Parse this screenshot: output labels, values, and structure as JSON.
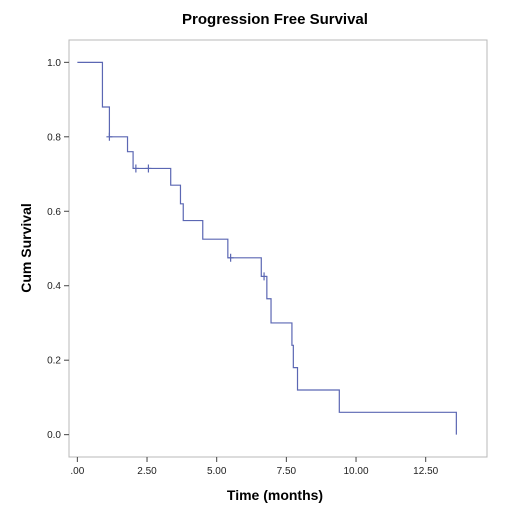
{
  "chart_data": {
    "type": "line",
    "title": "Progression Free Survival",
    "xlabel": "Time (months)",
    "ylabel": "Cum Survival",
    "xlim": [
      -0.3,
      14.7
    ],
    "ylim": [
      -0.06,
      1.06
    ],
    "x_ticks": [
      0,
      2.5,
      5,
      7.5,
      10,
      12.5
    ],
    "x_tick_labels": [
      ".00",
      "2.50",
      "5.00",
      "7.50",
      "10.00",
      "12.50"
    ],
    "y_ticks": [
      0,
      0.2,
      0.4,
      0.6,
      0.8,
      1.0
    ],
    "y_tick_labels": [
      "0.0",
      "0.2",
      "0.4",
      "0.6",
      "0.8",
      "1.0"
    ],
    "grid": false,
    "legend": "none",
    "line_color": "#5b67b3",
    "series": [
      {
        "style": "step",
        "points": [
          [
            0,
            1.0
          ],
          [
            0.9,
            1.0
          ],
          [
            0.9,
            0.88
          ],
          [
            1.15,
            0.88
          ],
          [
            1.15,
            0.8
          ],
          [
            1.8,
            0.8
          ],
          [
            1.8,
            0.76
          ],
          [
            2.0,
            0.76
          ],
          [
            2.0,
            0.715
          ],
          [
            3.35,
            0.715
          ],
          [
            3.35,
            0.67
          ],
          [
            3.7,
            0.67
          ],
          [
            3.7,
            0.62
          ],
          [
            3.8,
            0.62
          ],
          [
            3.8,
            0.575
          ],
          [
            4.5,
            0.575
          ],
          [
            4.5,
            0.525
          ],
          [
            5.4,
            0.525
          ],
          [
            5.4,
            0.475
          ],
          [
            6.6,
            0.475
          ],
          [
            6.6,
            0.425
          ],
          [
            6.8,
            0.425
          ],
          [
            6.8,
            0.365
          ],
          [
            6.95,
            0.365
          ],
          [
            6.95,
            0.3
          ],
          [
            7.7,
            0.3
          ],
          [
            7.7,
            0.24
          ],
          [
            7.75,
            0.24
          ],
          [
            7.75,
            0.18
          ],
          [
            7.9,
            0.18
          ],
          [
            7.9,
            0.12
          ],
          [
            9.4,
            0.12
          ],
          [
            9.4,
            0.06
          ],
          [
            13.6,
            0.06
          ],
          [
            13.6,
            0.0
          ]
        ],
        "censored": [
          [
            1.15,
            0.8
          ],
          [
            2.1,
            0.715
          ],
          [
            2.55,
            0.715
          ],
          [
            5.5,
            0.475
          ],
          [
            6.7,
            0.425
          ]
        ]
      }
    ]
  }
}
